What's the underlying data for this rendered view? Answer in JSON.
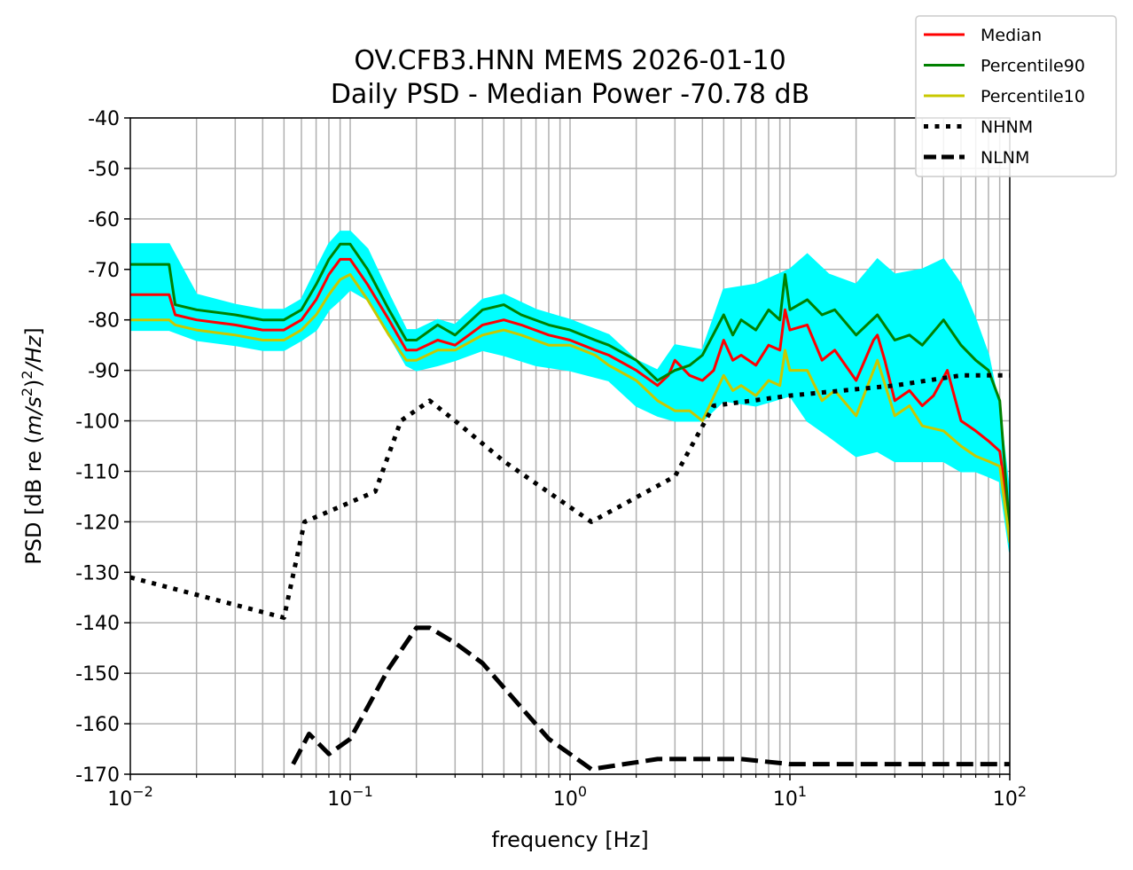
{
  "chart_data": {
    "type": "line",
    "title": "OV.CFB3.HNN MEMS 2026-01-10",
    "subtitle": "Daily PSD - Median Power -70.78 dB",
    "xlabel": "frequency [Hz]",
    "ylabel_parts": [
      "PSD [dB re (",
      "m/s",
      "2",
      ")",
      "2",
      "/Hz",
      "]"
    ],
    "x_scale": "log",
    "xlim": [
      0.01,
      100
    ],
    "ylim": [
      -170,
      -40
    ],
    "grid": true,
    "legend_position": "top-right",
    "x_ticks": [
      {
        "base": "10",
        "exp": "−2"
      },
      {
        "base": "10",
        "exp": "−1"
      },
      {
        "base": "10",
        "exp": "0"
      },
      {
        "base": "10",
        "exp": "1"
      },
      {
        "base": "10",
        "exp": "2"
      }
    ],
    "y_ticks": [
      "-40",
      "-50",
      "-60",
      "-70",
      "-80",
      "-90",
      "-100",
      "-110",
      "-120",
      "-130",
      "-140",
      "-150",
      "-160",
      "-170"
    ],
    "envelope": {
      "color": "#00ffff",
      "x": [
        0.01,
        0.015,
        0.02,
        0.03,
        0.04,
        0.05,
        0.06,
        0.07,
        0.08,
        0.09,
        0.1,
        0.12,
        0.15,
        0.18,
        0.2,
        0.25,
        0.3,
        0.4,
        0.5,
        0.7,
        1.0,
        1.5,
        2.0,
        2.5,
        3.0,
        4.0,
        5.0,
        7.0,
        10.0,
        12.0,
        15.0,
        20.0,
        25.0,
        30.0,
        40.0,
        50.0,
        60.0,
        70.0,
        80.0,
        90.0,
        100.0
      ],
      "upper": [
        -65,
        -65,
        -75,
        -77,
        -78,
        -78,
        -76,
        -70,
        -65,
        -62.5,
        -62.5,
        -66,
        -75,
        -82,
        -82,
        -80,
        -81,
        -76,
        -75,
        -78,
        -80,
        -83,
        -88,
        -90,
        -85,
        -86,
        -74,
        -73,
        -70,
        -67,
        -71,
        -73,
        -68,
        -71,
        -70,
        -68,
        -73,
        -80,
        -87,
        -98,
        -115
      ],
      "lower": [
        -82,
        -82,
        -84,
        -85,
        -86,
        -86,
        -84,
        -82,
        -78,
        -76,
        -74,
        -76,
        -83,
        -89,
        -90,
        -89,
        -88,
        -86,
        -87,
        -89,
        -90,
        -92,
        -97,
        -99,
        -100,
        -100,
        -96,
        -97,
        -95,
        -100,
        -103,
        -107,
        -106,
        -108,
        -108,
        -108,
        -110,
        -110,
        -111,
        -112,
        -126
      ]
    },
    "series": [
      {
        "name": "Median",
        "color": "#ff0000",
        "style": "solid",
        "x": [
          0.01,
          0.015,
          0.016,
          0.02,
          0.03,
          0.04,
          0.05,
          0.06,
          0.07,
          0.08,
          0.09,
          0.1,
          0.12,
          0.15,
          0.18,
          0.2,
          0.25,
          0.3,
          0.4,
          0.5,
          0.6,
          0.8,
          1.0,
          1.3,
          1.5,
          2.0,
          2.5,
          2.8,
          3.0,
          3.5,
          4.0,
          4.5,
          5.0,
          5.5,
          6.0,
          7.0,
          8.0,
          9.0,
          9.5,
          10.0,
          12.0,
          14.0,
          16.0,
          20.0,
          24.0,
          25.0,
          27.0,
          30.0,
          35.0,
          40.0,
          45.0,
          52.0,
          60.0,
          70.0,
          80.0,
          90.0,
          100.0
        ],
        "y": [
          -75,
          -75,
          -79,
          -80,
          -81,
          -82,
          -82,
          -80,
          -76,
          -71,
          -68,
          -68,
          -73,
          -80,
          -86,
          -86,
          -84,
          -85,
          -81,
          -80,
          -81,
          -83,
          -84,
          -86,
          -87,
          -90,
          -93,
          -91,
          -88,
          -91,
          -92,
          -90,
          -84,
          -88,
          -87,
          -89,
          -85,
          -86,
          -78,
          -82,
          -81,
          -88,
          -86,
          -92,
          -84,
          -83,
          -88,
          -96,
          -94,
          -97,
          -95,
          -90,
          -100,
          -102,
          -104,
          -106,
          -120
        ]
      },
      {
        "name": "Percentile90",
        "color": "#008000",
        "style": "solid",
        "x": [
          0.01,
          0.015,
          0.016,
          0.02,
          0.03,
          0.04,
          0.05,
          0.06,
          0.07,
          0.08,
          0.09,
          0.1,
          0.12,
          0.15,
          0.18,
          0.2,
          0.25,
          0.3,
          0.4,
          0.5,
          0.6,
          0.8,
          1.0,
          1.3,
          1.5,
          2.0,
          2.5,
          3.0,
          3.5,
          4.0,
          5.0,
          5.5,
          6.0,
          7.0,
          8.0,
          9.0,
          9.5,
          10.0,
          12.0,
          14.0,
          16.0,
          20.0,
          25.0,
          30.0,
          35.0,
          40.0,
          50.0,
          60.0,
          70.0,
          80.0,
          90.0,
          100.0
        ],
        "y": [
          -69,
          -69,
          -77,
          -78,
          -79,
          -80,
          -80,
          -78,
          -73,
          -68,
          -65,
          -65,
          -70,
          -78,
          -84,
          -84,
          -81,
          -83,
          -78,
          -77,
          -79,
          -81,
          -82,
          -84,
          -85,
          -88,
          -92,
          -90,
          -89,
          -87,
          -79,
          -83,
          -80,
          -82,
          -78,
          -80,
          -71,
          -78,
          -76,
          -79,
          -78,
          -83,
          -79,
          -84,
          -83,
          -85,
          -80,
          -85,
          -88,
          -90,
          -96,
          -122
        ]
      },
      {
        "name": "Percentile10",
        "color": "#c8c800",
        "style": "solid",
        "x": [
          0.01,
          0.015,
          0.016,
          0.02,
          0.03,
          0.04,
          0.05,
          0.06,
          0.07,
          0.08,
          0.09,
          0.1,
          0.12,
          0.15,
          0.18,
          0.2,
          0.25,
          0.3,
          0.4,
          0.5,
          0.6,
          0.8,
          1.0,
          1.3,
          1.5,
          2.0,
          2.5,
          3.0,
          3.5,
          4.0,
          5.0,
          5.5,
          6.0,
          7.0,
          8.0,
          9.0,
          9.5,
          10.0,
          12.0,
          14.0,
          16.0,
          20.0,
          25.0,
          30.0,
          35.0,
          40.0,
          50.0,
          60.0,
          70.0,
          80.0,
          90.0,
          100.0
        ],
        "y": [
          -80,
          -80,
          -81,
          -82,
          -83,
          -84,
          -84,
          -82,
          -79,
          -75,
          -72,
          -71,
          -76,
          -83,
          -88,
          -88,
          -86,
          -86,
          -83,
          -82,
          -83,
          -85,
          -85,
          -87,
          -89,
          -92,
          -96,
          -98,
          -98,
          -100,
          -91,
          -94,
          -93,
          -95,
          -92,
          -93,
          -86,
          -90,
          -90,
          -96,
          -94,
          -99,
          -88,
          -99,
          -97,
          -101,
          -102,
          -105,
          -107,
          -108,
          -109,
          -124
        ]
      },
      {
        "name": "NHNM",
        "color": "#000000",
        "style": "dotted",
        "x": [
          0.01,
          0.05,
          0.062,
          0.09,
          0.13,
          0.17,
          0.23,
          0.3,
          0.5,
          1.25,
          3.0,
          4.5,
          10.0,
          30.0,
          60.0,
          100.0
        ],
        "y": [
          -131,
          -139,
          -120,
          -117,
          -114,
          -100,
          -96,
          -100,
          -108,
          -120,
          -111,
          -97,
          -95,
          -93,
          -91,
          -91
        ]
      },
      {
        "name": "NLNM",
        "color": "#000000",
        "style": "dashed",
        "x": [
          0.055,
          0.065,
          0.08,
          0.1,
          0.15,
          0.2,
          0.23,
          0.3,
          0.4,
          0.8,
          1.25,
          2.5,
          3.0,
          6.0,
          10.0,
          100.0
        ],
        "y": [
          -168,
          -162,
          -166,
          -163,
          -149,
          -141,
          -141,
          -144,
          -148,
          -163,
          -169,
          -167,
          -167,
          -167,
          -168,
          -168
        ]
      }
    ]
  }
}
